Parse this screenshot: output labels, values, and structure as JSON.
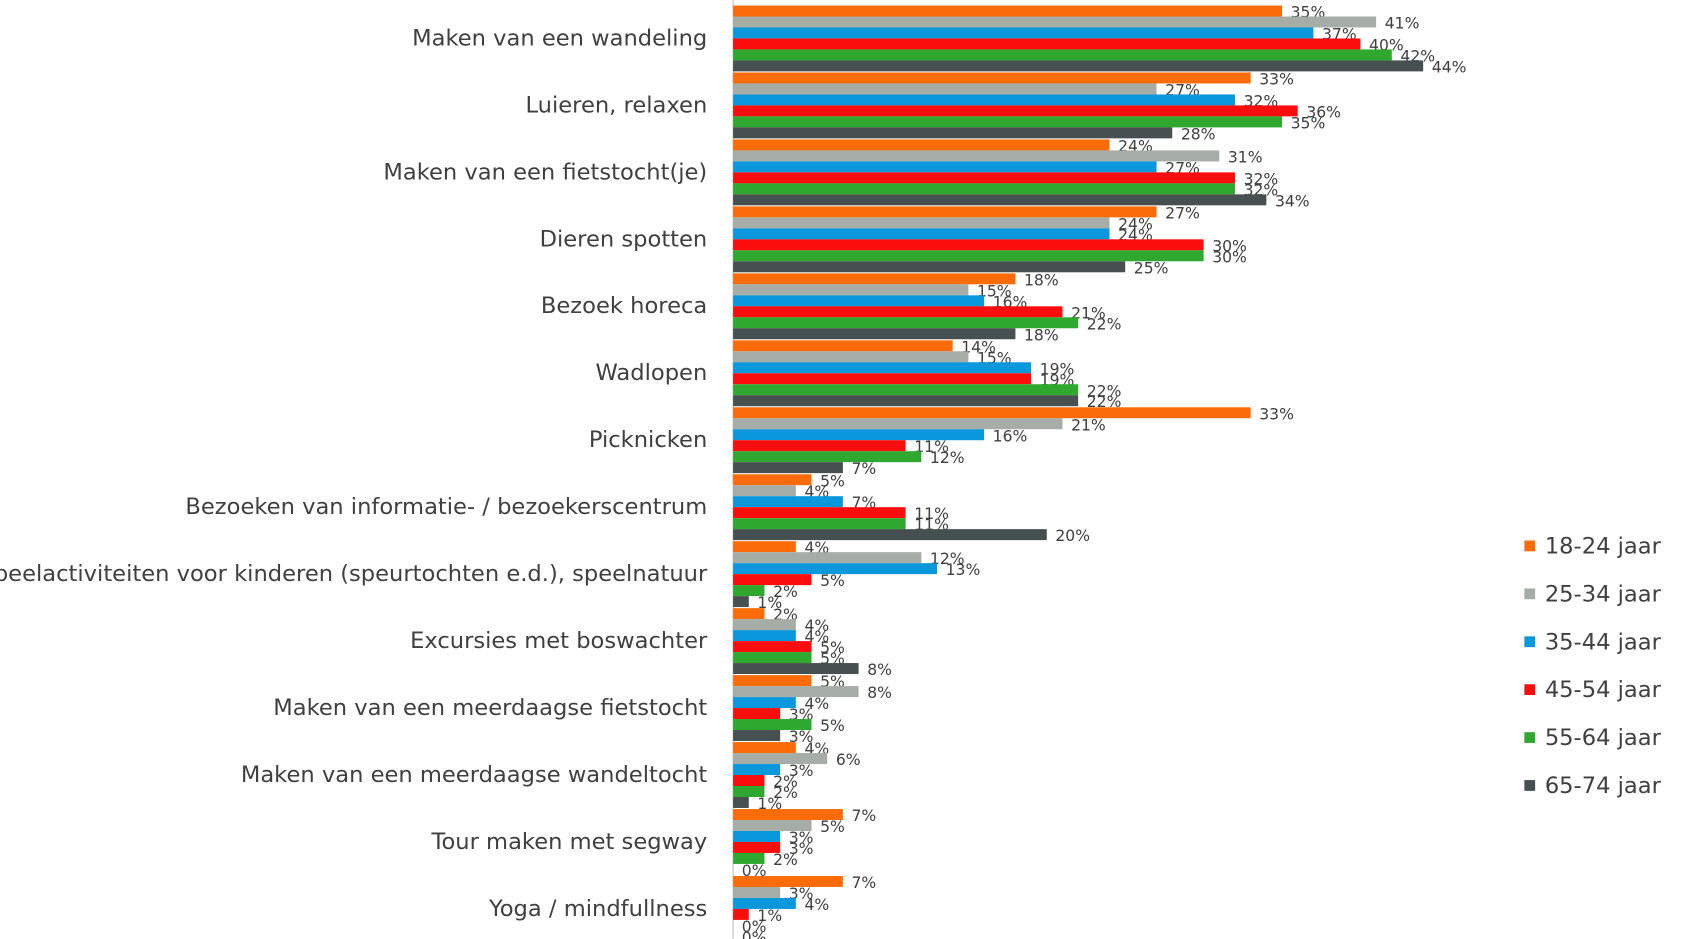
{
  "chart_data": {
    "type": "bar",
    "orientation": "horizontal",
    "categories": [
      "Maken van een wandeling",
      "Luieren, relaxen",
      "Maken van een fietstocht(je)",
      "Dieren spotten",
      "Bezoek horeca",
      "Wadlopen",
      "Picknicken",
      "Bezoeken van informatie- / bezoekerscentrum",
      "Speelactiviteiten voor kinderen (speurtochten e.d.), speelnatuur",
      "Excursies met boswachter",
      "Maken van een meerdaagse fietstocht",
      "Maken van een meerdaagse wandeltocht",
      "Tour maken met segway",
      "Yoga / mindfullness"
    ],
    "series": [
      {
        "name": "18-24 jaar",
        "color": "#fb6c09",
        "values": [
          35,
          33,
          24,
          27,
          18,
          14,
          33,
          5,
          4,
          2,
          5,
          4,
          7,
          7
        ],
        "value_labels": [
          "35%",
          "33%",
          "24%",
          "27%",
          "18%",
          "14%",
          "33%",
          "5%",
          "4%",
          "2%",
          "5%",
          "4%",
          "7%",
          "7%"
        ]
      },
      {
        "name": "25-34 jaar",
        "color": "#a6aca6",
        "values": [
          41,
          27,
          31,
          24,
          15,
          15,
          21,
          4,
          12,
          4,
          8,
          6,
          5,
          3
        ],
        "value_labels": [
          "41%",
          "27%",
          "31%",
          "24%",
          "15%",
          "15%",
          "21%",
          "4%",
          "12%",
          "4%",
          "8%",
          "6%",
          "5%",
          "3%"
        ]
      },
      {
        "name": "35-44 jaar",
        "color": "#0b97dc",
        "values": [
          37,
          32,
          27,
          24,
          16,
          19,
          16,
          7,
          13,
          4,
          4,
          3,
          3,
          4
        ],
        "value_labels": [
          "37%",
          "32%",
          "27%",
          "24%",
          "16%",
          "19%",
          "16%",
          "7%",
          "13%",
          "4%",
          "4%",
          "3%",
          "3%",
          "4%"
        ]
      },
      {
        "name": "45-54 jaar",
        "color": "#fa0d0d",
        "values": [
          40,
          36,
          32,
          30,
          21,
          19,
          11,
          11,
          5,
          5,
          3,
          2,
          3,
          1
        ],
        "value_labels": [
          "40%",
          "36%",
          "32%",
          "30%",
          "21%",
          "19%",
          "11%",
          "11%",
          "5%",
          "5%",
          "3%",
          "2%",
          "3%",
          "1%"
        ]
      },
      {
        "name": "55-64 jaar",
        "color": "#2fa82f",
        "values": [
          42,
          35,
          32,
          30,
          22,
          22,
          12,
          11,
          2,
          5,
          5,
          2,
          2,
          0
        ],
        "value_labels": [
          "42%",
          "35%",
          "32%",
          "30%",
          "22%",
          "22%",
          "12%",
          "11%",
          "2%",
          "5%",
          "5%",
          "2%",
          "2%",
          "0%"
        ]
      },
      {
        "name": "65-74 jaar",
        "color": "#465050",
        "values": [
          44,
          28,
          34,
          25,
          18,
          22,
          7,
          20,
          1,
          8,
          3,
          1,
          0,
          0
        ],
        "value_labels": [
          "44%",
          "28%",
          "34%",
          "25%",
          "18%",
          "22%",
          "7%",
          "20%",
          "1%",
          "8%",
          "3%",
          "1%",
          "0%",
          "0%"
        ]
      }
    ],
    "legend": "right"
  }
}
